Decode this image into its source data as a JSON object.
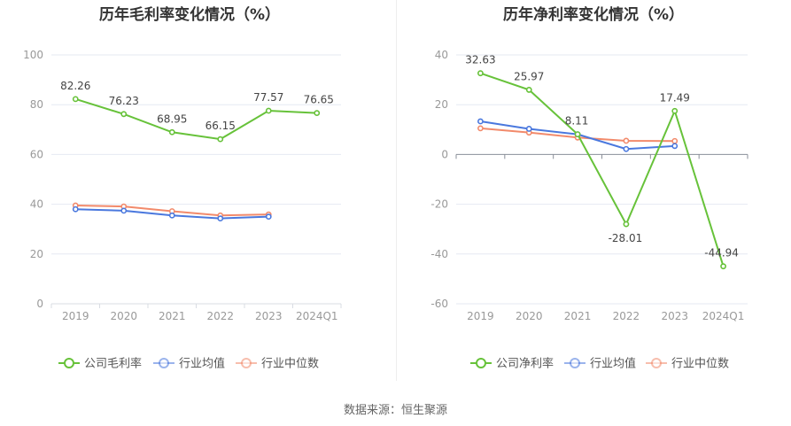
{
  "source": "数据来源：恒生聚源",
  "colors": {
    "company": "#67c23a",
    "avg": "#4a78de",
    "median": "#f28a6b",
    "axis_text": "#999999",
    "grid": "#e6e9f2",
    "title": "#333333"
  },
  "chart_data": [
    {
      "type": "line",
      "title": "历年毛利率变化情况（%）",
      "categories": [
        "2019",
        "2020",
        "2021",
        "2022",
        "2023",
        "2024Q1"
      ],
      "ylim": [
        0,
        100
      ],
      "yticks": [
        0,
        20,
        40,
        60,
        80,
        100
      ],
      "legend_position": "bottom",
      "series": [
        {
          "name": "公司毛利率",
          "key": "company",
          "values": [
            82.26,
            76.23,
            68.95,
            66.15,
            77.57,
            76.65
          ],
          "labels": [
            "82.26",
            "76.23",
            "68.95",
            "66.15",
            "77.57",
            "76.65"
          ]
        },
        {
          "name": "行业均值",
          "key": "avg",
          "values": [
            38.0,
            37.4,
            35.5,
            34.3,
            35.0,
            null
          ]
        },
        {
          "name": "行业中位数",
          "key": "median",
          "values": [
            39.5,
            39.1,
            37.2,
            35.5,
            35.9,
            null
          ]
        }
      ]
    },
    {
      "type": "line",
      "title": "历年净利率变化情况（%）",
      "categories": [
        "2019",
        "2020",
        "2021",
        "2022",
        "2023",
        "2024Q1"
      ],
      "ylim": [
        -60,
        40
      ],
      "yticks": [
        -60,
        -40,
        -20,
        0,
        20,
        40
      ],
      "legend_position": "bottom",
      "series": [
        {
          "name": "公司净利率",
          "key": "company",
          "values": [
            32.63,
            25.97,
            8.11,
            -28.01,
            17.49,
            -44.94
          ],
          "labels": [
            "32.63",
            "25.97",
            "8.11",
            "-28.01",
            "17.49",
            "-44.94"
          ]
        },
        {
          "name": "行业均值",
          "key": "avg",
          "values": [
            13.3,
            10.3,
            8.1,
            2.2,
            3.4,
            null
          ]
        },
        {
          "name": "行业中位数",
          "key": "median",
          "values": [
            10.5,
            8.8,
            6.8,
            5.5,
            5.4,
            null
          ]
        }
      ]
    }
  ]
}
